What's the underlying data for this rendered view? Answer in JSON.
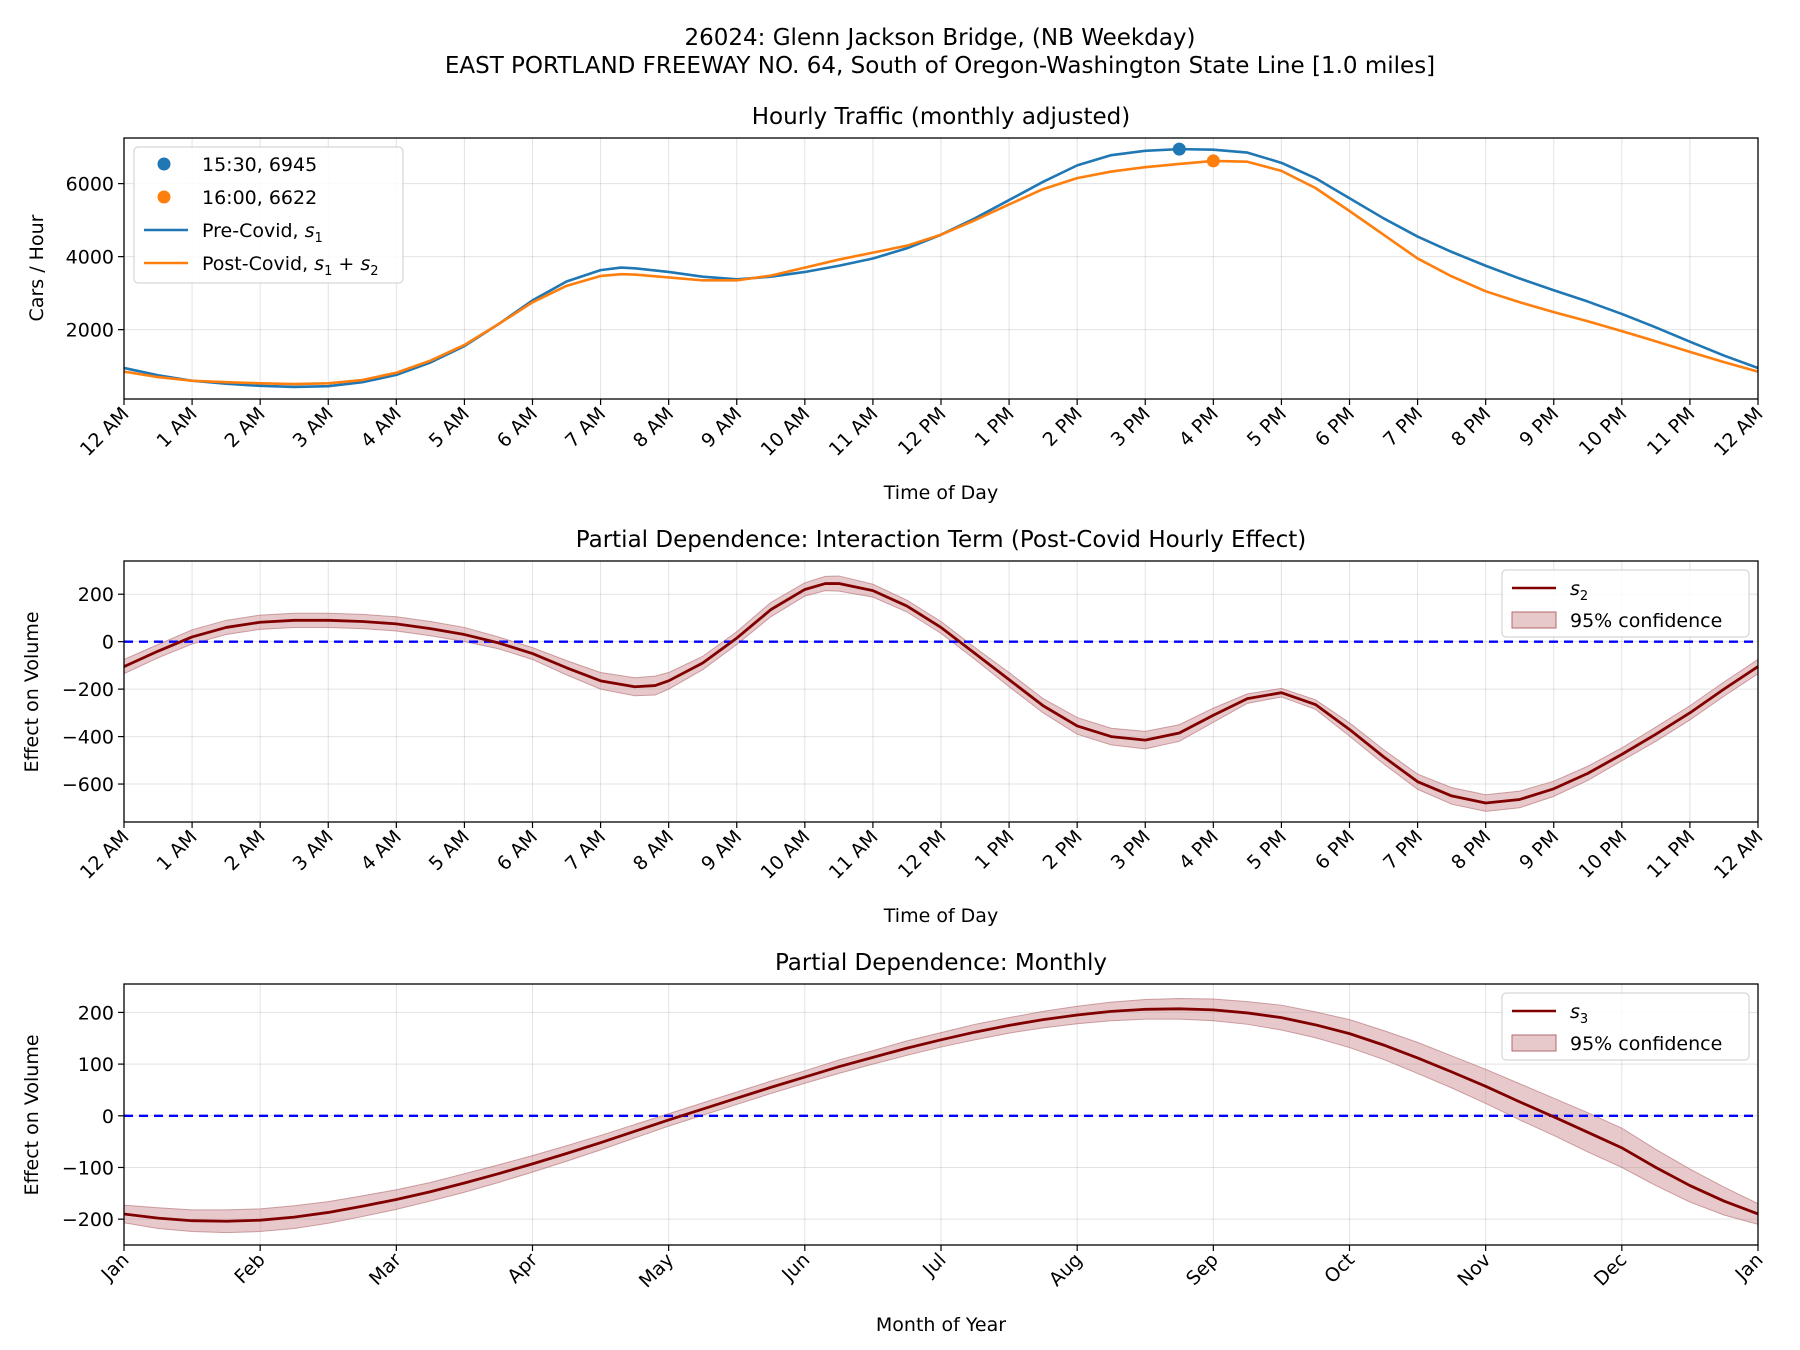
{
  "figure": {
    "suptitle_line1": "26024: Glenn Jackson Bridge, (NB Weekday)",
    "suptitle_line2": "EAST PORTLAND FREEWAY NO. 64, South of Oregon-Washington State Line [1.0 miles]"
  },
  "colors": {
    "pre_covid": "#1f77b4",
    "post_covid": "#ff7f0e",
    "effect_line": "#800000",
    "confidence_fill": "#c9878b",
    "zero_line": "#0000ff"
  },
  "chart_data": [
    {
      "type": "line",
      "title": "Hourly Traffic (monthly adjusted)",
      "xlabel": "Time of Day",
      "ylabel": "Cars / Hour",
      "xlim": [
        0,
        24
      ],
      "ylim": [
        100,
        7250
      ],
      "yticks": [
        2000,
        4000,
        6000
      ],
      "xtick_labels": [
        "12 AM",
        "1 AM",
        "2 AM",
        "3 AM",
        "4 AM",
        "5 AM",
        "6 AM",
        "7 AM",
        "8 AM",
        "9 AM",
        "10 AM",
        "11 AM",
        "12 PM",
        "1 PM",
        "2 PM",
        "3 PM",
        "4 PM",
        "5 PM",
        "6 PM",
        "7 PM",
        "8 PM",
        "9 PM",
        "10 PM",
        "11 PM",
        "12 AM"
      ],
      "grid": true,
      "legend_position": "top-left",
      "series": [
        {
          "name": "Pre-Covid, s₁",
          "x": [
            0,
            0.5,
            1,
            1.5,
            2,
            2.5,
            3,
            3.5,
            4,
            4.5,
            5,
            5.5,
            6,
            6.5,
            7,
            7.3,
            7.5,
            8,
            8.5,
            9,
            9.5,
            10,
            10.5,
            11,
            11.5,
            12,
            12.5,
            13,
            13.5,
            14,
            14.5,
            15,
            15.5,
            16,
            16.5,
            17,
            17.5,
            18,
            18.5,
            19,
            19.5,
            20,
            20.5,
            21,
            21.5,
            22,
            22.5,
            23,
            23.5,
            24
          ],
          "y": [
            950,
            750,
            600,
            520,
            460,
            430,
            450,
            560,
            760,
            1100,
            1550,
            2150,
            2800,
            3320,
            3630,
            3700,
            3680,
            3580,
            3450,
            3380,
            3450,
            3580,
            3750,
            3950,
            4230,
            4600,
            5050,
            5550,
            6050,
            6500,
            6780,
            6900,
            6945,
            6930,
            6850,
            6570,
            6150,
            5600,
            5050,
            4550,
            4130,
            3750,
            3400,
            3080,
            2770,
            2430,
            2060,
            1670,
            1290,
            950
          ]
        },
        {
          "name": "Post-Covid, s₁ + s₂",
          "x": [
            0,
            0.5,
            1,
            1.5,
            2,
            2.5,
            3,
            3.5,
            4,
            4.5,
            5,
            5.5,
            6,
            6.5,
            7,
            7.3,
            7.5,
            8,
            8.5,
            9,
            9.5,
            10,
            10.5,
            11,
            11.5,
            12,
            12.5,
            13,
            13.5,
            14,
            14.5,
            15,
            15.5,
            16,
            16.5,
            17,
            17.5,
            18,
            18.5,
            19,
            19.5,
            20,
            20.5,
            21,
            21.5,
            22,
            22.5,
            23,
            23.5,
            24
          ],
          "y": [
            850,
            700,
            600,
            560,
            530,
            510,
            530,
            620,
            820,
            1150,
            1580,
            2150,
            2750,
            3200,
            3470,
            3520,
            3510,
            3430,
            3350,
            3350,
            3480,
            3700,
            3920,
            4110,
            4300,
            4600,
            5000,
            5430,
            5850,
            6150,
            6330,
            6450,
            6540,
            6622,
            6600,
            6350,
            5880,
            5250,
            4600,
            3950,
            3460,
            3050,
            2750,
            2480,
            2230,
            1960,
            1680,
            1390,
            1110,
            850
          ]
        },
        {
          "name": "15:30, 6945",
          "type": "scatter",
          "x": [
            15.5
          ],
          "y": [
            6945
          ]
        },
        {
          "name": "16:00, 6622",
          "type": "scatter",
          "x": [
            16.0
          ],
          "y": [
            6622
          ]
        }
      ]
    },
    {
      "type": "line",
      "title": "Partial Dependence: Interaction Term (Post-Covid Hourly Effect)",
      "xlabel": "Time of Day",
      "ylabel": "Effect on Volume",
      "xlim": [
        0,
        24
      ],
      "ylim": [
        -760,
        340
      ],
      "yticks": [
        -600,
        -400,
        -200,
        0,
        200
      ],
      "xtick_labels": [
        "12 AM",
        "1 AM",
        "2 AM",
        "3 AM",
        "4 AM",
        "5 AM",
        "6 AM",
        "7 AM",
        "8 AM",
        "9 AM",
        "10 AM",
        "11 AM",
        "12 PM",
        "1 PM",
        "2 PM",
        "3 PM",
        "4 PM",
        "5 PM",
        "6 PM",
        "7 PM",
        "8 PM",
        "9 PM",
        "10 PM",
        "11 PM",
        "12 AM"
      ],
      "grid": true,
      "legend_position": "top-right",
      "zero_line": 0,
      "series": [
        {
          "name": "s₂",
          "x": [
            0,
            0.5,
            1,
            1.5,
            2,
            2.5,
            3,
            3.5,
            4,
            4.5,
            5,
            5.5,
            6,
            6.5,
            7,
            7.5,
            7.8,
            8,
            8.5,
            9,
            9.5,
            10,
            10.3,
            10.5,
            11,
            11.5,
            12,
            12.5,
            13,
            13.5,
            14,
            14.5,
            15,
            15.5,
            16,
            16.5,
            17,
            17.5,
            18,
            18.5,
            19,
            19.5,
            20,
            20.5,
            21,
            21.5,
            22,
            22.5,
            23,
            23.5,
            24
          ],
          "y": [
            -105,
            -40,
            20,
            60,
            82,
            90,
            90,
            85,
            75,
            55,
            30,
            -5,
            -50,
            -110,
            -165,
            -190,
            -185,
            -165,
            -90,
            15,
            135,
            220,
            245,
            245,
            215,
            150,
            60,
            -50,
            -160,
            -270,
            -355,
            -400,
            -415,
            -385,
            -310,
            -240,
            -215,
            -265,
            -370,
            -485,
            -590,
            -650,
            -680,
            -665,
            -620,
            -555,
            -475,
            -390,
            -300,
            -200,
            -105
          ],
          "ci_lower": [
            -135,
            -68,
            -10,
            30,
            52,
            60,
            60,
            55,
            45,
            25,
            0,
            -30,
            -75,
            -140,
            -200,
            -228,
            -225,
            -200,
            -118,
            -12,
            105,
            192,
            215,
            213,
            188,
            125,
            35,
            -75,
            -190,
            -300,
            -390,
            -435,
            -452,
            -420,
            -340,
            -260,
            -233,
            -285,
            -398,
            -515,
            -622,
            -685,
            -715,
            -700,
            -652,
            -585,
            -502,
            -420,
            -330,
            -230,
            -135
          ],
          "ci_upper": [
            -75,
            -12,
            50,
            90,
            112,
            120,
            120,
            115,
            105,
            85,
            60,
            20,
            -25,
            -80,
            -130,
            -152,
            -145,
            -130,
            -62,
            42,
            165,
            248,
            275,
            277,
            242,
            175,
            85,
            -25,
            -130,
            -240,
            -320,
            -365,
            -378,
            -350,
            -280,
            -220,
            -197,
            -245,
            -342,
            -455,
            -558,
            -615,
            -645,
            -630,
            -588,
            -525,
            -448,
            -360,
            -270,
            -170,
            -75
          ]
        }
      ]
    },
    {
      "type": "line",
      "title": "Partial Dependence: Monthly",
      "xlabel": "Month of Year",
      "ylabel": "Effect on Volume",
      "xlim": [
        1,
        13
      ],
      "ylim": [
        -250,
        255
      ],
      "yticks": [
        -200,
        -100,
        0,
        100,
        200
      ],
      "xtick_labels": [
        "Jan",
        "Feb",
        "Mar",
        "Apr",
        "May",
        "Jun",
        "Jul",
        "Aug",
        "Sep",
        "Oct",
        "Nov",
        "Dec",
        "Jan"
      ],
      "grid": true,
      "legend_position": "top-right",
      "zero_line": 0,
      "series": [
        {
          "name": "s₃",
          "x": [
            1,
            1.25,
            1.5,
            1.75,
            2,
            2.25,
            2.5,
            2.75,
            3,
            3.25,
            3.5,
            3.75,
            4,
            4.25,
            4.5,
            4.75,
            5,
            5.25,
            5.5,
            5.75,
            6,
            6.25,
            6.5,
            6.75,
            7,
            7.25,
            7.5,
            7.75,
            8,
            8.25,
            8.5,
            8.75,
            9,
            9.25,
            9.5,
            9.75,
            10,
            10.25,
            10.5,
            10.75,
            11,
            11.25,
            11.5,
            11.75,
            12,
            12.25,
            12.5,
            12.75,
            13
          ],
          "y": [
            -190,
            -198,
            -203,
            -204,
            -202,
            -196,
            -187,
            -175,
            -162,
            -147,
            -130,
            -112,
            -93,
            -73,
            -52,
            -30,
            -8,
            13,
            34,
            55,
            75,
            95,
            113,
            131,
            147,
            162,
            175,
            186,
            195,
            202,
            206,
            207,
            205,
            199,
            190,
            176,
            159,
            137,
            112,
            85,
            57,
            27,
            -2,
            -32,
            -62,
            -100,
            -135,
            -165,
            -190
          ],
          "ci_lower": [
            -207,
            -218,
            -224,
            -226,
            -224,
            -218,
            -208,
            -195,
            -181,
            -165,
            -148,
            -129,
            -109,
            -88,
            -66,
            -43,
            -20,
            1,
            22,
            43,
            63,
            82,
            100,
            117,
            133,
            147,
            160,
            170,
            178,
            184,
            187,
            187,
            184,
            177,
            166,
            151,
            132,
            109,
            82,
            54,
            24,
            -8,
            -38,
            -70,
            -100,
            -135,
            -167,
            -192,
            -210
          ],
          "ci_upper": [
            -173,
            -178,
            -182,
            -182,
            -180,
            -174,
            -166,
            -155,
            -143,
            -129,
            -112,
            -95,
            -77,
            -58,
            -38,
            -17,
            4,
            25,
            46,
            67,
            87,
            108,
            126,
            145,
            161,
            177,
            190,
            202,
            212,
            220,
            225,
            227,
            226,
            221,
            214,
            201,
            186,
            165,
            142,
            116,
            90,
            62,
            34,
            6,
            -24,
            -65,
            -103,
            -138,
            -170
          ]
        }
      ]
    }
  ],
  "legends": {
    "top": [
      {
        "marker": "dot",
        "color": "#1f77b4",
        "text": "15:30, 6945"
      },
      {
        "marker": "dot",
        "color": "#ff7f0e",
        "text": "16:00, 6622"
      },
      {
        "marker": "line",
        "color": "#1f77b4",
        "text": "Pre-Covid, ",
        "sub": "1",
        "suffix": ""
      },
      {
        "marker": "line",
        "color": "#ff7f0e",
        "text": "Post-Covid, ",
        "sub": "1",
        "suffix": " + ",
        "sub2": "2"
      }
    ],
    "middle": [
      {
        "marker": "line",
        "text": "s",
        "sub": "2"
      },
      {
        "marker": "patch",
        "text": "95% confidence"
      }
    ],
    "bottom": [
      {
        "marker": "line",
        "text": "s",
        "sub": "3"
      },
      {
        "marker": "patch",
        "text": "95% confidence"
      }
    ]
  }
}
